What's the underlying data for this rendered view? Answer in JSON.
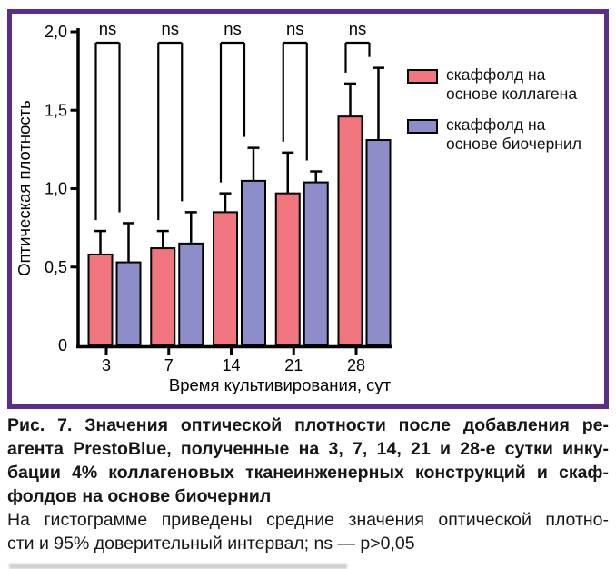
{
  "frame_color": "#5A2D8C",
  "chart_data": {
    "type": "bar",
    "title": "",
    "xlabel": "Время культивирования, сут",
    "ylabel": "Оптическая плотность",
    "ylim": [
      0,
      2.0
    ],
    "grid": false,
    "legend_position": "right",
    "ytick_values": [
      0,
      0.5,
      1.0,
      1.5,
      2.0
    ],
    "ytick_labels": [
      "0",
      "0,5",
      "1,0",
      "1,5",
      "2,0"
    ],
    "categories": [
      "3",
      "7",
      "14",
      "21",
      "28"
    ],
    "series": [
      {
        "name": "скаффолд на основе коллагена",
        "color": "#F0757E",
        "values": [
          0.58,
          0.62,
          0.85,
          0.97,
          1.46
        ],
        "errors": [
          0.15,
          0.11,
          0.12,
          0.26,
          0.21
        ]
      },
      {
        "name": "скаффолд на основе биочернил",
        "color": "#8C8DC9",
        "values": [
          0.53,
          0.65,
          1.05,
          1.04,
          1.31
        ],
        "errors": [
          0.25,
          0.2,
          0.21,
          0.07,
          0.46
        ]
      }
    ],
    "significance_labels": [
      "ns",
      "ns",
      "ns",
      "ns",
      "ns"
    ],
    "error_note": "95% доверительный интервал"
  },
  "caption": {
    "bold_lines": [
      "Рис. 7. Значения оптической плотности после добавления ре-",
      "агента PrestoBlue, полученные на 3, 7, 14, 21 и 28-е сутки инку-",
      "бации 4% коллагеновых тканеинженерных конструкций и скаф-",
      "фолдов на основе биочернил"
    ],
    "normal_lines": [
      "На гистограмме приведены средние значения оптической плотно-",
      "сти и 95% доверительный интервал; ns — p>0,05"
    ]
  }
}
